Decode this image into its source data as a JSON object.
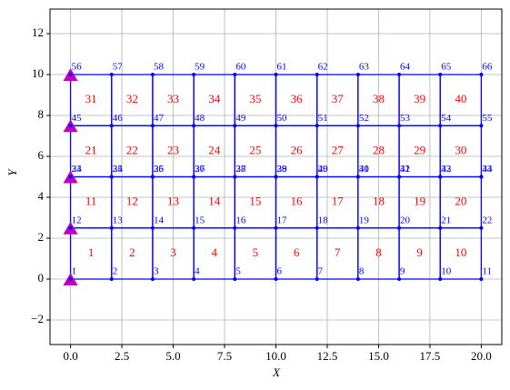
{
  "chart_data": {
    "type": "mesh",
    "x_label": "X",
    "y_label": "Y",
    "xlim": [
      -1,
      21
    ],
    "ylim": [
      -3.2,
      13.2
    ],
    "xticks": [
      {
        "value": 0,
        "label": "0.0"
      },
      {
        "value": 2.5,
        "label": "2.5"
      },
      {
        "value": 5,
        "label": "5.0"
      },
      {
        "value": 7.5,
        "label": "7.5"
      },
      {
        "value": 10,
        "label": "10.0"
      },
      {
        "value": 12.5,
        "label": "12.5"
      },
      {
        "value": 15,
        "label": "15.0"
      },
      {
        "value": 17.5,
        "label": "17.5"
      },
      {
        "value": 20,
        "label": "20.0"
      }
    ],
    "yticks": [
      {
        "value": -2,
        "label": "−2"
      },
      0,
      2,
      4,
      6,
      8,
      10,
      12
    ],
    "grid": true,
    "node_color": "#0000ff",
    "edge_color": "#0000ff",
    "element_label_color": "#ff0000",
    "support_color": "#bf00bf",
    "nodes": {
      "labels": [
        1,
        2,
        3,
        4,
        5,
        6,
        7,
        8,
        9,
        10,
        11,
        12,
        13,
        14,
        15,
        16,
        17,
        18,
        19,
        20,
        21,
        22,
        23,
        24,
        25,
        26,
        27,
        28,
        29,
        30,
        31,
        32,
        33,
        34,
        35,
        36,
        37,
        38,
        39,
        40,
        41,
        42,
        43,
        44,
        45,
        46,
        47,
        48,
        49,
        50,
        51,
        52,
        53,
        54,
        55,
        56,
        57,
        58,
        59,
        60,
        61,
        62,
        63,
        64,
        65,
        66
      ],
      "x": [
        0,
        2,
        4,
        6,
        8,
        10,
        12,
        14,
        16,
        18,
        20,
        0,
        2,
        4,
        6,
        8,
        10,
        12,
        14,
        16,
        18,
        20,
        0,
        2,
        4,
        6,
        8,
        10,
        12,
        14,
        16,
        18,
        20,
        0,
        2,
        4,
        6,
        8,
        10,
        12,
        14,
        16,
        18,
        20,
        0,
        2,
        4,
        6,
        8,
        10,
        12,
        14,
        16,
        18,
        20,
        0,
        2,
        4,
        6,
        8,
        10,
        12,
        14,
        16,
        18,
        20
      ],
      "y": [
        0,
        0,
        0,
        0,
        0,
        0,
        0,
        0,
        0,
        0,
        0,
        2.5,
        2.5,
        2.5,
        2.5,
        2.5,
        2.5,
        2.5,
        2.5,
        2.5,
        2.5,
        2.5,
        5,
        5,
        5,
        5,
        5,
        5,
        5,
        5,
        5,
        5,
        5,
        5,
        5,
        5,
        5,
        5,
        5,
        5,
        5,
        5,
        5,
        5,
        7.5,
        7.5,
        7.5,
        7.5,
        7.5,
        7.5,
        7.5,
        7.5,
        7.5,
        7.5,
        7.5,
        10,
        10,
        10,
        10,
        10,
        10,
        10,
        10,
        10,
        10,
        10
      ]
    },
    "elements": {
      "labels": [
        1,
        2,
        3,
        4,
        5,
        6,
        7,
        8,
        9,
        10,
        11,
        12,
        13,
        14,
        15,
        16,
        17,
        18,
        19,
        20,
        21,
        22,
        23,
        24,
        25,
        26,
        27,
        28,
        29,
        30,
        31,
        32,
        33,
        34,
        35,
        36,
        37,
        38,
        39,
        40
      ],
      "nodes": [
        [
          1,
          2,
          13,
          12
        ],
        [
          2,
          3,
          14,
          13
        ],
        [
          3,
          4,
          15,
          14
        ],
        [
          4,
          5,
          16,
          15
        ],
        [
          5,
          6,
          17,
          16
        ],
        [
          6,
          7,
          18,
          17
        ],
        [
          7,
          8,
          19,
          18
        ],
        [
          8,
          9,
          20,
          19
        ],
        [
          9,
          10,
          21,
          20
        ],
        [
          10,
          11,
          22,
          21
        ],
        [
          12,
          13,
          24,
          23
        ],
        [
          13,
          14,
          25,
          24
        ],
        [
          14,
          15,
          26,
          25
        ],
        [
          15,
          16,
          27,
          26
        ],
        [
          16,
          17,
          28,
          27
        ],
        [
          17,
          18,
          29,
          28
        ],
        [
          18,
          19,
          30,
          29
        ],
        [
          19,
          20,
          31,
          30
        ],
        [
          20,
          21,
          32,
          31
        ],
        [
          21,
          22,
          33,
          32
        ],
        [
          34,
          35,
          46,
          45
        ],
        [
          35,
          36,
          47,
          46
        ],
        [
          36,
          37,
          48,
          47
        ],
        [
          37,
          38,
          49,
          48
        ],
        [
          38,
          39,
          50,
          49
        ],
        [
          39,
          40,
          51,
          50
        ],
        [
          40,
          41,
          52,
          51
        ],
        [
          41,
          42,
          53,
          52
        ],
        [
          42,
          43,
          54,
          53
        ],
        [
          43,
          44,
          55,
          54
        ],
        [
          45,
          46,
          57,
          56
        ],
        [
          46,
          47,
          58,
          57
        ],
        [
          47,
          48,
          59,
          58
        ],
        [
          48,
          49,
          60,
          59
        ],
        [
          49,
          50,
          61,
          60
        ],
        [
          50,
          51,
          62,
          61
        ],
        [
          51,
          52,
          63,
          62
        ],
        [
          52,
          53,
          64,
          63
        ],
        [
          53,
          54,
          65,
          64
        ],
        [
          54,
          55,
          66,
          65
        ]
      ]
    },
    "supports": [
      1,
      12,
      23,
      45,
      56
    ]
  }
}
